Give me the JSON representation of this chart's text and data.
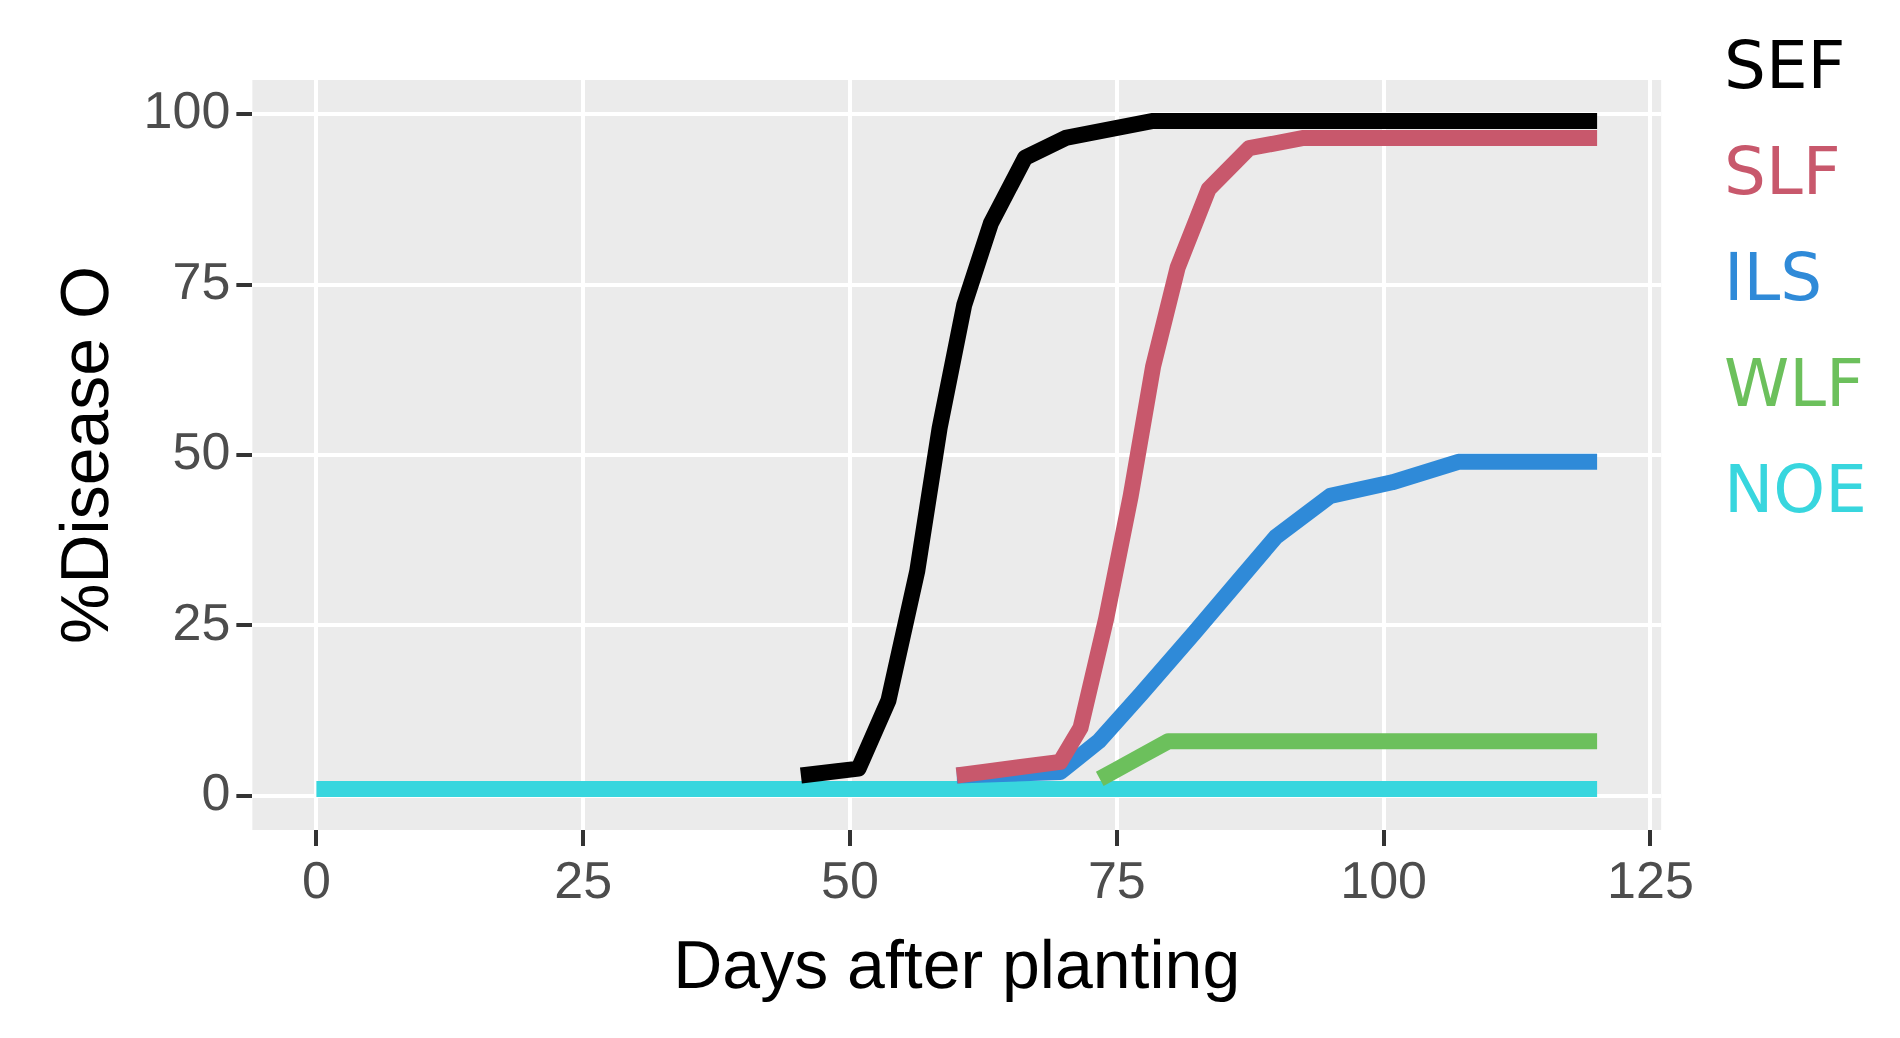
{
  "chart_data": {
    "type": "line",
    "xlabel": "Days after planting",
    "ylabel": "%Disease O",
    "xlim": [
      -6,
      126
    ],
    "ylim": [
      -5,
      105
    ],
    "xticks": [
      0,
      25,
      50,
      75,
      100,
      125
    ],
    "yticks": [
      0,
      25,
      50,
      75,
      100
    ],
    "grid": true,
    "legend": "right",
    "marker": "none",
    "line_style": "solid",
    "series": [
      {
        "name": "SEF",
        "color": "#000000",
        "x": [
          45.4,
          50.8,
          53.6,
          56.3,
          58.4,
          60.7,
          63.2,
          66.4,
          70.2,
          78.4,
          120
        ],
        "values": [
          3,
          4,
          14,
          33,
          54,
          72,
          84,
          93.6,
          96.5,
          99,
          99
        ]
      },
      {
        "name": "SLF",
        "color": "#c8586c",
        "x": [
          60,
          69.7,
          71.6,
          74,
          76.3,
          78.4,
          80.7,
          83.6,
          87.4,
          92.5,
          120
        ],
        "values": [
          3,
          5,
          10,
          26,
          44,
          63,
          77.5,
          89,
          95,
          96.5,
          96.5
        ]
      },
      {
        "name": "ILS",
        "color": "#2f8ad8",
        "x": [
          60,
          69.7,
          73.3,
          77.3,
          82.3,
          86.1,
          89.9,
          95,
          100.8,
          107,
          120
        ],
        "values": [
          3,
          3.5,
          8,
          15,
          24,
          31,
          38,
          44,
          46,
          49,
          49
        ]
      },
      {
        "name": "WLF",
        "color": "#6cc05c",
        "x": [
          73.4,
          79.8,
          120
        ],
        "values": [
          2.5,
          8,
          8
        ]
      },
      {
        "name": "NOE",
        "color": "#38d6de",
        "x": [
          0,
          120
        ],
        "values": [
          1,
          1
        ]
      }
    ]
  }
}
